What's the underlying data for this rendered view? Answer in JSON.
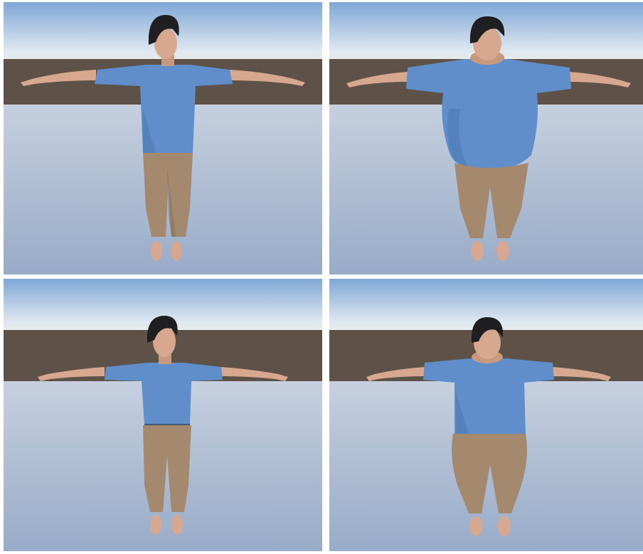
{
  "scene": {
    "colors": {
      "sky_top": "#7fa6d6",
      "sky_horizon": "#eef3f5",
      "ground_band": "#5e5147",
      "floor_top": "#c1ccdd",
      "floor_bottom": "#9dafcb",
      "shirt": "#5f8ecb",
      "shirt_shade": "#4a76b0",
      "pants": "#a5896f",
      "pants_shade": "#8a7058",
      "skin": "#d7a88f",
      "skin_shade": "#b7856c",
      "hair": "#1f1f22"
    },
    "panels": [
      {
        "id": "slim-casual",
        "body_width": 1.0,
        "shirt_length": 1.0
      },
      {
        "id": "heavy-casual",
        "body_width": 1.85,
        "shirt_length": 1.0
      },
      {
        "id": "slim-tucked",
        "body_width": 0.95,
        "shirt_length": 0.75
      },
      {
        "id": "heavy-tucked",
        "body_width": 1.7,
        "shirt_length": 0.8
      }
    ]
  }
}
